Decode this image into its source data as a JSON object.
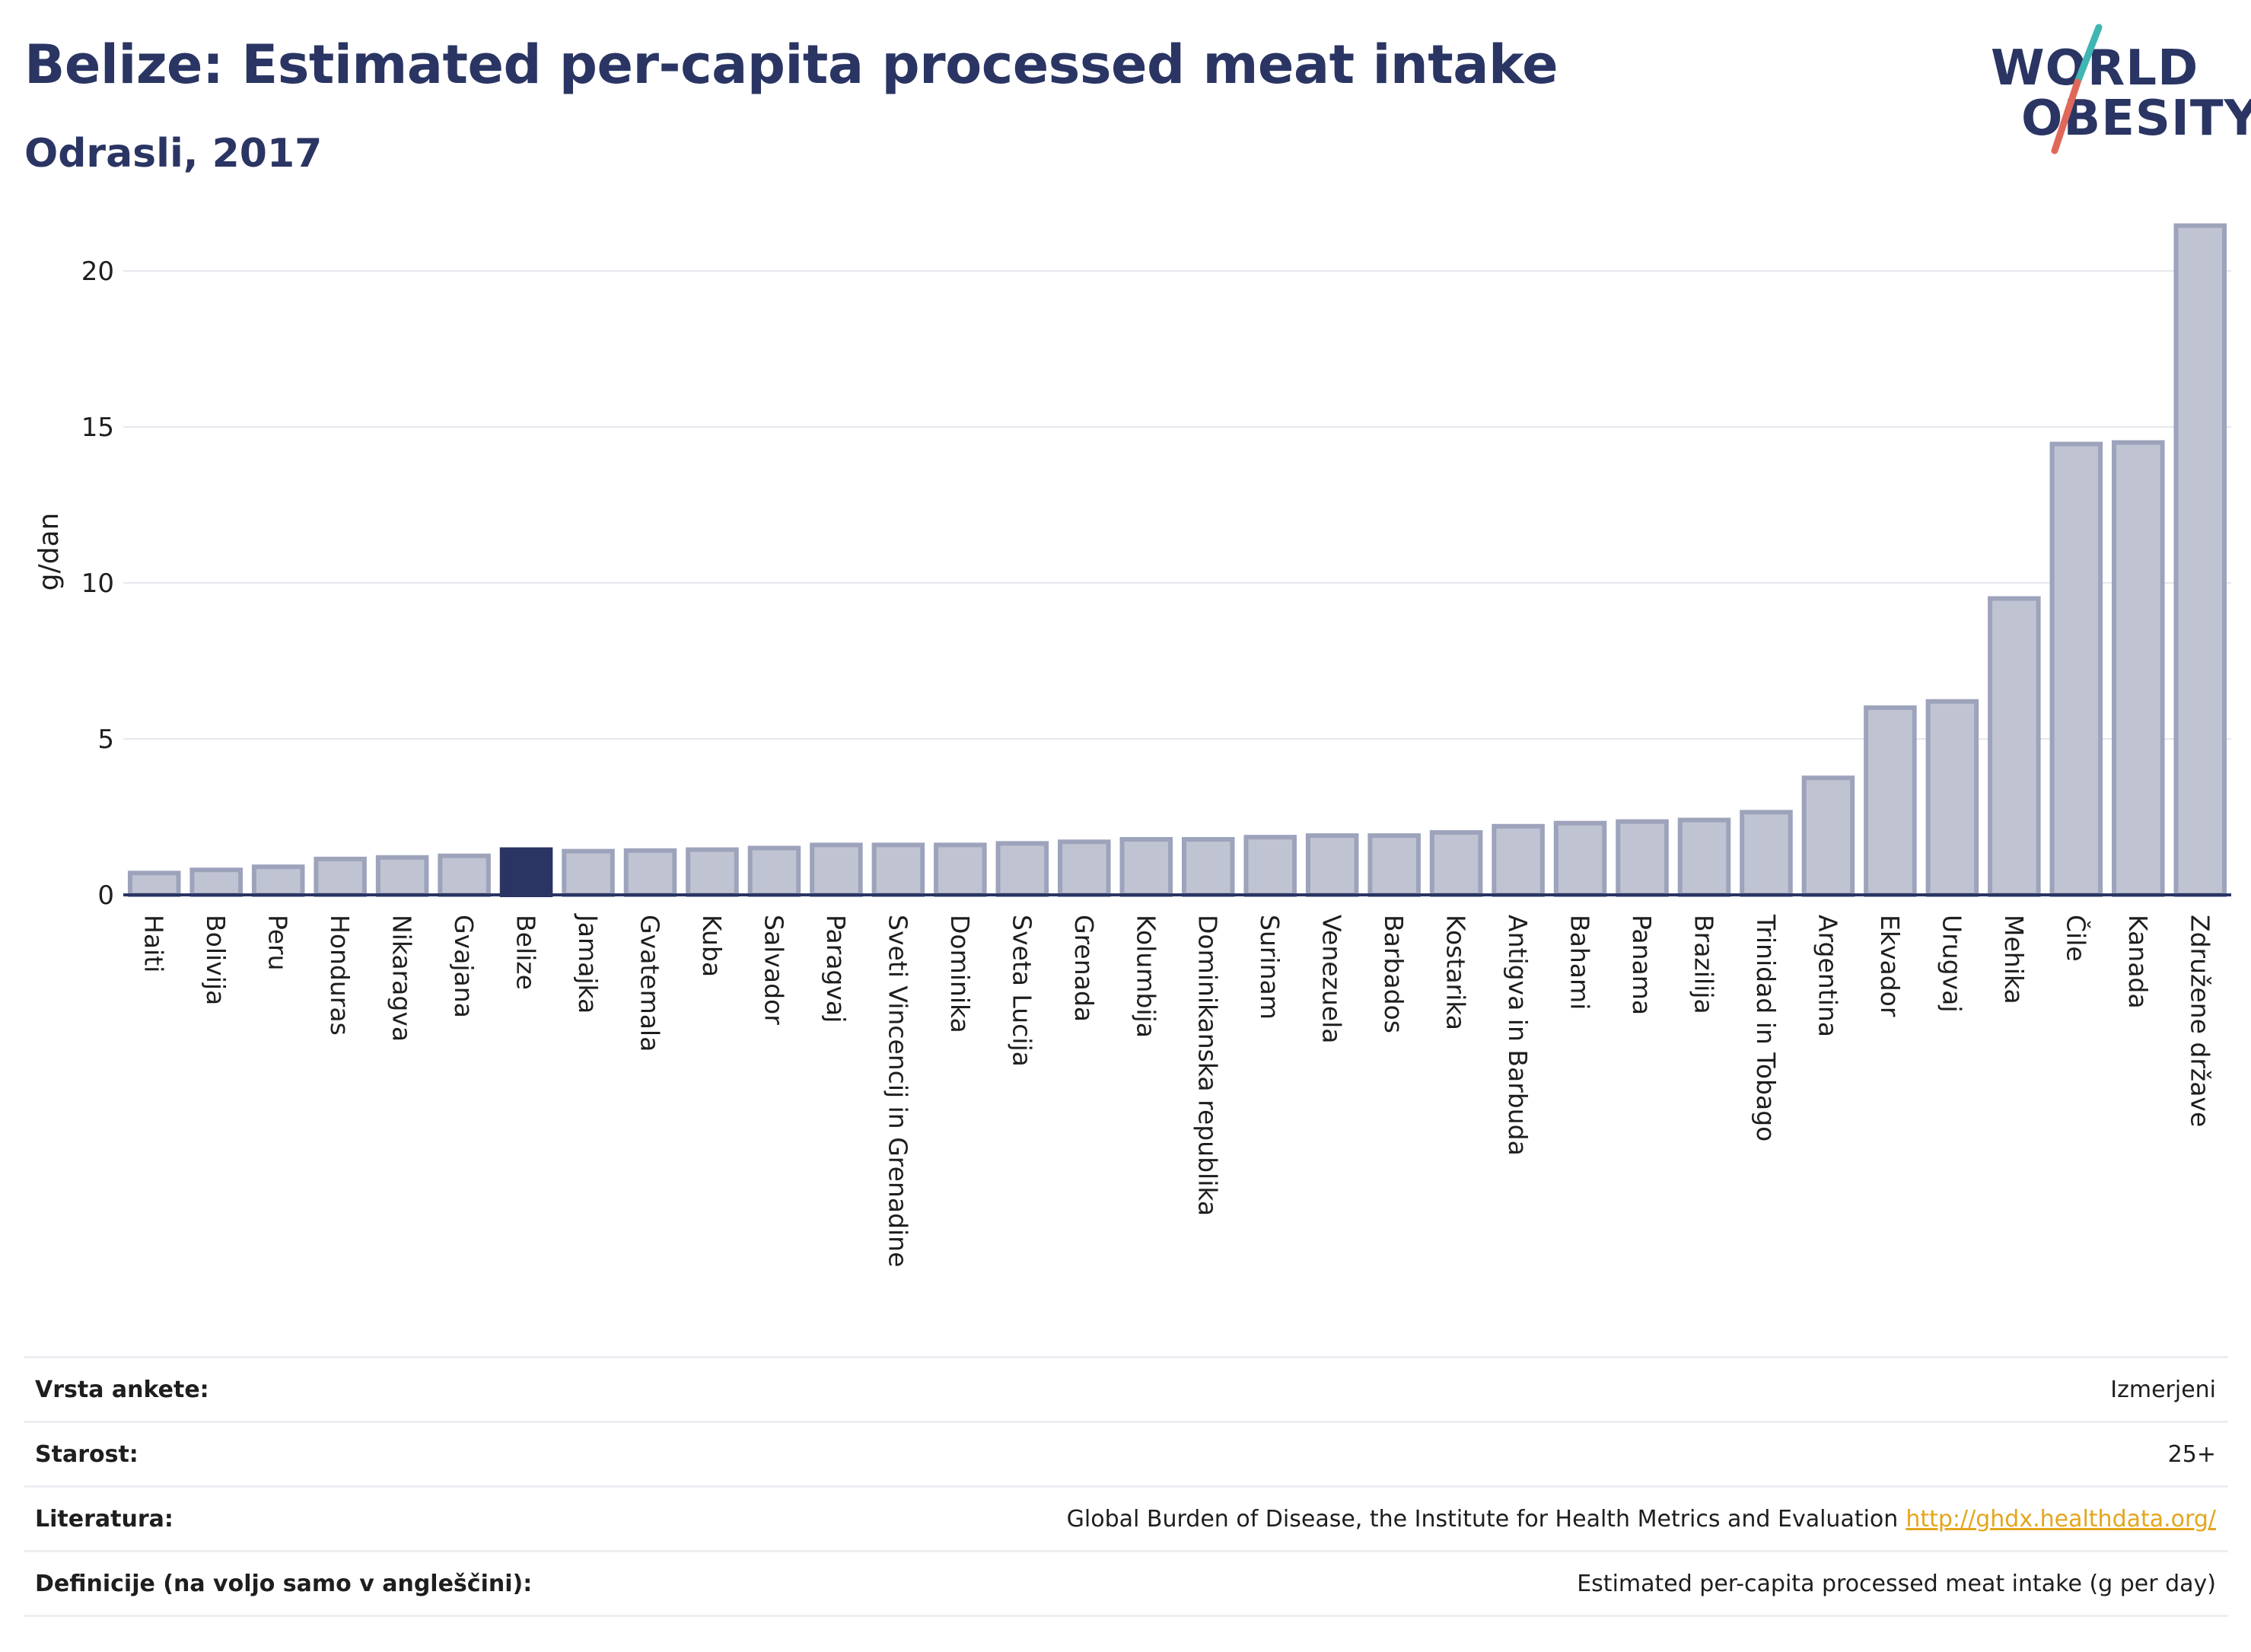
{
  "header": {
    "title": "Belize: Estimated per-capita processed meat intake",
    "subtitle": "Odrasli, 2017"
  },
  "logo": {
    "line1": "WORLD",
    "line2": "OBESITY",
    "accent_colors": [
      "#3fb6b2",
      "#e0685a"
    ]
  },
  "colors": {
    "bar_fill": "#c0c4d2",
    "bar_stroke": "#9da3bb",
    "highlight": "#2a3563",
    "axis": "#2a3563",
    "grid": "#e6e8ee",
    "link": "#e3a61c"
  },
  "chart_data": {
    "type": "bar",
    "title": "Belize: Estimated per-capita processed meat intake",
    "subtitle": "Odrasli, 2017",
    "ylabel": "g/dan",
    "xlabel": "",
    "ylim": [
      0,
      22
    ],
    "yticks": [
      0,
      5,
      10,
      15,
      20
    ],
    "grid": true,
    "highlight_category": "Belize",
    "categories": [
      "Haiti",
      "Bolivija",
      "Peru",
      "Honduras",
      "Nikaragva",
      "Gvajana",
      "Belize",
      "Jamajka",
      "Gvatemala",
      "Kuba",
      "Salvador",
      "Paragvaj",
      "Sveti Vincencij in Grenadine",
      "Dominika",
      "Sveta Lucija",
      "Grenada",
      "Kolumbija",
      "Dominikanska republika",
      "Surinam",
      "Venezuela",
      "Barbados",
      "Kostarika",
      "Antigva in Barbuda",
      "Bahami",
      "Panama",
      "Brazilija",
      "Trinidad in Tobago",
      "Argentina",
      "Ekvador",
      "Urugvaj",
      "Mehika",
      "Čile",
      "Kanada",
      "Združene države"
    ],
    "values": [
      0.7,
      0.8,
      0.9,
      1.15,
      1.2,
      1.25,
      1.45,
      1.4,
      1.42,
      1.45,
      1.5,
      1.6,
      1.6,
      1.6,
      1.65,
      1.7,
      1.78,
      1.78,
      1.85,
      1.9,
      1.9,
      2.0,
      2.2,
      2.3,
      2.35,
      2.4,
      2.65,
      3.75,
      6.0,
      6.2,
      9.5,
      14.45,
      14.5,
      21.45
    ]
  },
  "info": [
    {
      "label": "Vrsta ankete:",
      "value": "Izmerjeni"
    },
    {
      "label": "Starost:",
      "value": "25+"
    },
    {
      "label": "Literatura:",
      "value": "Global Burden of Disease, the Institute for Health Metrics and Evaluation",
      "link": "http://ghdx.healthdata.org/"
    },
    {
      "label": "Definicije (na voljo samo v angleščini):",
      "value": "Estimated per-capita processed meat intake (g per day)"
    }
  ]
}
